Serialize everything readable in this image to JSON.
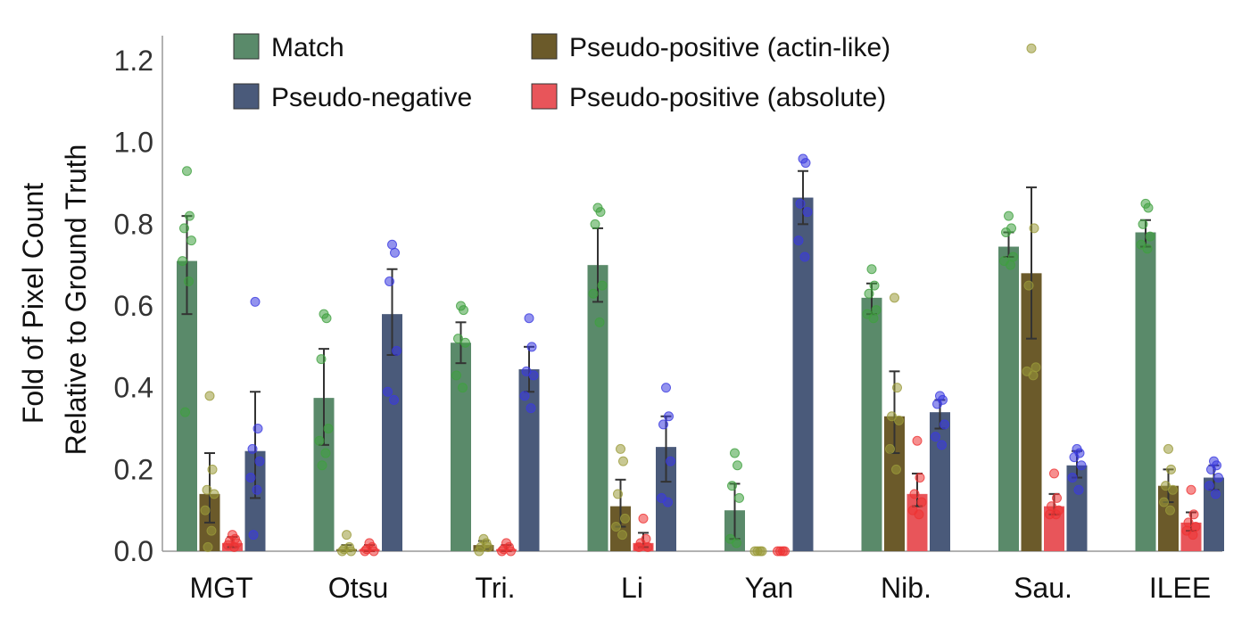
{
  "chart_data": {
    "type": "bar",
    "ylabel_lines": [
      "Fold of Pixel Count",
      "Relative to Ground Truth"
    ],
    "ylim": [
      0,
      1.25
    ],
    "yticks": [
      "0.0",
      "0.2",
      "0.4",
      "0.6",
      "0.8",
      "1.0",
      "1.2"
    ],
    "ytick_values": [
      0,
      0.2,
      0.4,
      0.6,
      0.8,
      1.0,
      1.2
    ],
    "categories": [
      "MGT",
      "Otsu",
      "Tri.",
      "Li",
      "Yan",
      "Nib.",
      "Sau.",
      "ILEE"
    ],
    "legend_position": "top",
    "grid": false,
    "series": [
      {
        "name": "Match",
        "color": "#5a8a6a",
        "point_color": "#3fa03f",
        "values": [
          0.71,
          0.375,
          0.51,
          0.7,
          0.1,
          0.62,
          0.745,
          0.78
        ],
        "err_low": [
          0.58,
          0.26,
          0.46,
          0.61,
          0.03,
          0.58,
          0.72,
          0.745
        ],
        "err_high": [
          0.82,
          0.495,
          0.56,
          0.79,
          0.165,
          0.655,
          0.78,
          0.81
        ],
        "points": [
          [
            0.93,
            0.82,
            0.79,
            0.76,
            0.71,
            0.66,
            0.34
          ],
          [
            0.58,
            0.57,
            0.47,
            0.3,
            0.27,
            0.24,
            0.21
          ],
          [
            0.6,
            0.59,
            0.52,
            0.51,
            0.43,
            0.4
          ],
          [
            0.84,
            0.83,
            0.8,
            0.65,
            0.63,
            0.56
          ],
          [
            0.24,
            0.21,
            0.16,
            0.13,
            0.03,
            0.02
          ],
          [
            0.69,
            0.65,
            0.63,
            0.59,
            0.58,
            0.57
          ],
          [
            0.82,
            0.79,
            0.78,
            0.72,
            0.71,
            0.7
          ],
          [
            0.85,
            0.84,
            0.8,
            0.77,
            0.75,
            0.74
          ]
        ]
      },
      {
        "name": "Pseudo-positive (actin-like)",
        "color": "#6b5a2a",
        "point_color": "#9a9a3a",
        "values": [
          0.14,
          0.005,
          0.015,
          0.11,
          0.0,
          0.33,
          0.68,
          0.16
        ],
        "err_low": [
          0.07,
          0.0,
          0.005,
          0.06,
          0.0,
          0.24,
          0.52,
          0.12
        ],
        "err_high": [
          0.24,
          0.015,
          0.025,
          0.175,
          0.0,
          0.44,
          0.89,
          0.2
        ],
        "points": [
          [
            0.38,
            0.2,
            0.15,
            0.14,
            0.1,
            0.05,
            0.01
          ],
          [
            0.04,
            0.01,
            0.005,
            0.0,
            0.0
          ],
          [
            0.03,
            0.02,
            0.01,
            0.01,
            0.0
          ],
          [
            0.25,
            0.22,
            0.14,
            0.08,
            0.06,
            0.04
          ],
          [
            0.0,
            0.0,
            0.0,
            0.0
          ],
          [
            0.62,
            0.4,
            0.33,
            0.32,
            0.25,
            0.2
          ],
          [
            1.23,
            0.79,
            0.65,
            0.45,
            0.44,
            0.43
          ],
          [
            0.25,
            0.2,
            0.16,
            0.15,
            0.12,
            0.1
          ]
        ]
      },
      {
        "name": "Pseudo-positive (absolute)",
        "color": "#e8555a",
        "point_color": "#ee3333",
        "values": [
          0.02,
          0.005,
          0.005,
          0.02,
          0.0,
          0.14,
          0.11,
          0.07
        ],
        "err_low": [
          0.01,
          0.0,
          0.0,
          0.01,
          0.0,
          0.11,
          0.09,
          0.05
        ],
        "err_high": [
          0.035,
          0.015,
          0.015,
          0.045,
          0.0,
          0.19,
          0.14,
          0.095
        ],
        "points": [
          [
            0.04,
            0.03,
            0.025,
            0.02,
            0.015,
            0.01
          ],
          [
            0.02,
            0.01,
            0.005,
            0.0,
            0.0
          ],
          [
            0.02,
            0.01,
            0.005,
            0.0,
            0.0
          ],
          [
            0.08,
            0.03,
            0.02,
            0.01,
            0.01
          ],
          [
            0.0,
            0.0,
            0.0,
            0.0
          ],
          [
            0.27,
            0.18,
            0.14,
            0.12,
            0.1,
            0.09
          ],
          [
            0.19,
            0.13,
            0.11,
            0.1,
            0.09,
            0.09
          ],
          [
            0.15,
            0.09,
            0.07,
            0.06,
            0.05,
            0.04
          ]
        ]
      },
      {
        "name": "Pseudo-negative",
        "color": "#4a5a7a",
        "point_color": "#3a3ae0",
        "values": [
          0.245,
          0.58,
          0.445,
          0.255,
          0.865,
          0.34,
          0.21,
          0.18
        ],
        "err_low": [
          0.13,
          0.48,
          0.39,
          0.17,
          0.8,
          0.3,
          0.18,
          0.15
        ],
        "err_high": [
          0.39,
          0.69,
          0.5,
          0.33,
          0.93,
          0.37,
          0.245,
          0.21
        ],
        "points": [
          [
            0.61,
            0.3,
            0.25,
            0.22,
            0.18,
            0.15,
            0.04
          ],
          [
            0.75,
            0.73,
            0.66,
            0.49,
            0.39,
            0.37
          ],
          [
            0.57,
            0.5,
            0.44,
            0.43,
            0.38,
            0.35
          ],
          [
            0.4,
            0.33,
            0.31,
            0.22,
            0.13,
            0.12
          ],
          [
            0.96,
            0.95,
            0.85,
            0.83,
            0.76,
            0.72
          ],
          [
            0.38,
            0.37,
            0.36,
            0.31,
            0.28,
            0.26
          ],
          [
            0.25,
            0.24,
            0.23,
            0.21,
            0.18,
            0.15
          ],
          [
            0.22,
            0.21,
            0.2,
            0.18,
            0.16,
            0.14
          ]
        ]
      }
    ],
    "legend": [
      {
        "label": "Match",
        "color": "#5a8a6a"
      },
      {
        "label": "Pseudo-negative",
        "color": "#4a5a7a"
      },
      {
        "label": "Pseudo-positive (actin-like)",
        "color": "#6b5a2a"
      },
      {
        "label": "Pseudo-positive (absolute)",
        "color": "#e8555a"
      }
    ]
  }
}
